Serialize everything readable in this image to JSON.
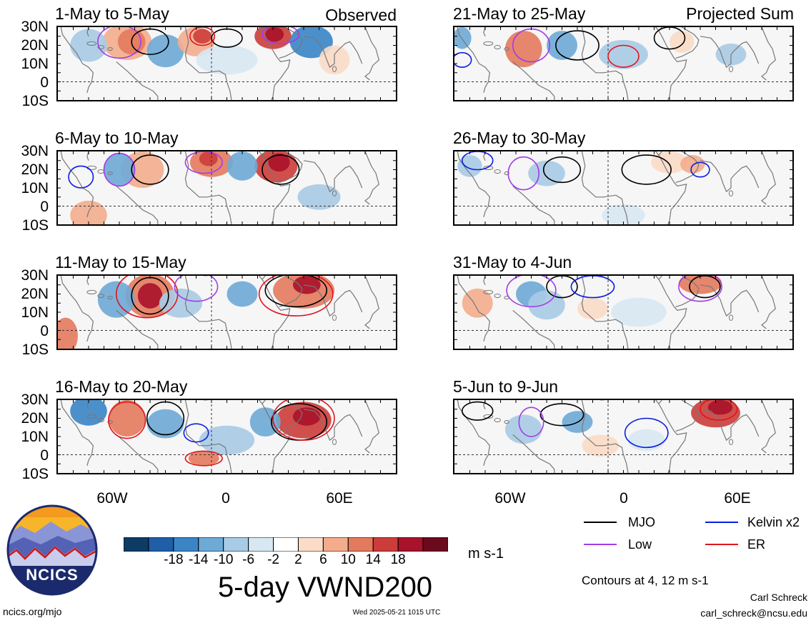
{
  "panel_label_left": "Observed",
  "panel_label_right": "Projected Sum",
  "panels_left": [
    {
      "title": "1-May to 5-May"
    },
    {
      "title": "6-May to 10-May"
    },
    {
      "title": "11-May to 15-May"
    },
    {
      "title": "16-May to 20-May"
    }
  ],
  "panels_right": [
    {
      "title": "21-May to 25-May"
    },
    {
      "title": "26-May to 30-May"
    },
    {
      "title": "31-May to 4-Jun"
    },
    {
      "title": "5-Jun to 9-Jun"
    }
  ],
  "lat_labels": [
    "30N",
    "20N",
    "10N",
    "0",
    "10S"
  ],
  "lon_labels": [
    "60W",
    "0",
    "60E"
  ],
  "colorbar": {
    "colors": [
      "#0d3b66",
      "#1f5fa8",
      "#3a85c6",
      "#6eaad6",
      "#a8cbe6",
      "#d8e8f3",
      "#ffffff",
      "#fbdcc8",
      "#f3ad8d",
      "#e47a5d",
      "#cc3d3a",
      "#a8122a",
      "#6b0a1e"
    ],
    "labels": [
      "-18",
      "-14",
      "-10",
      "-6",
      "-2",
      "2",
      "6",
      "10",
      "14",
      "18"
    ],
    "units": "m s-1"
  },
  "main_title": "5-day VWND200",
  "legend": {
    "mjo": {
      "label": "MJO",
      "color": "#000000"
    },
    "kelvin": {
      "label": "Kelvin x2",
      "color": "#0a1ee0"
    },
    "low": {
      "label": "Low",
      "color": "#a33ce6"
    },
    "er": {
      "label": "ER",
      "color": "#e0141e"
    }
  },
  "contour_note": "Contours at 4, 12 m s-1",
  "logo_text": "NCICS",
  "footer_left": "ncics.org/mjo",
  "footer_center": "Wed 2025-05-21 1015 UTC",
  "author_name": "Carl Schreck",
  "author_email": "carl_schreck@ncsu.edu"
}
